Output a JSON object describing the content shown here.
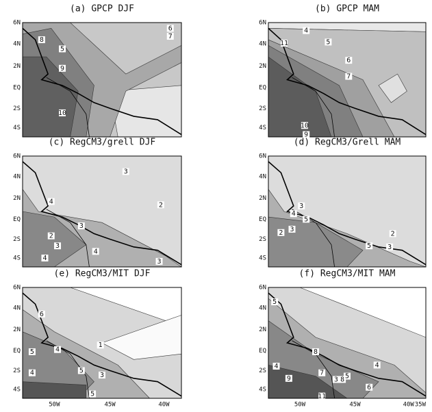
{
  "lat_labels": [
    "6N",
    "4N",
    "2N",
    "EQ",
    "2S",
    "4S"
  ],
  "lon_labels": [
    "50W",
    "45W",
    "40W",
    "35W"
  ],
  "panels": [
    {
      "title": "(a) GPCP DJF",
      "contour_labels": [
        "6",
        "7",
        "8",
        "5",
        "9",
        "10"
      ]
    },
    {
      "title": "(b) GPCP MAM",
      "contour_labels": [
        "4",
        "11",
        "5",
        "6",
        "7",
        "10",
        "9"
      ]
    },
    {
      "title": "(c) RegCM3/grell DJF",
      "contour_labels": [
        "3",
        "2",
        "4",
        "3",
        "2",
        "3",
        "4",
        "4",
        "3"
      ]
    },
    {
      "title": "(d) RegCM3/Grell MAM",
      "contour_labels": [
        "3",
        "4",
        "5",
        "2",
        "3",
        "5",
        "3",
        "2"
      ]
    },
    {
      "title": "(e) RegCM3/MIT DJF",
      "contour_labels": [
        "6",
        "1",
        "5",
        "4",
        "4",
        "5",
        "3",
        "5"
      ]
    },
    {
      "title": "(f) RegCM3/MIT MAM",
      "contour_labels": [
        "5",
        "8",
        "4",
        "7",
        "9",
        "3",
        "8",
        "5",
        "4",
        "6",
        "11"
      ]
    }
  ]
}
